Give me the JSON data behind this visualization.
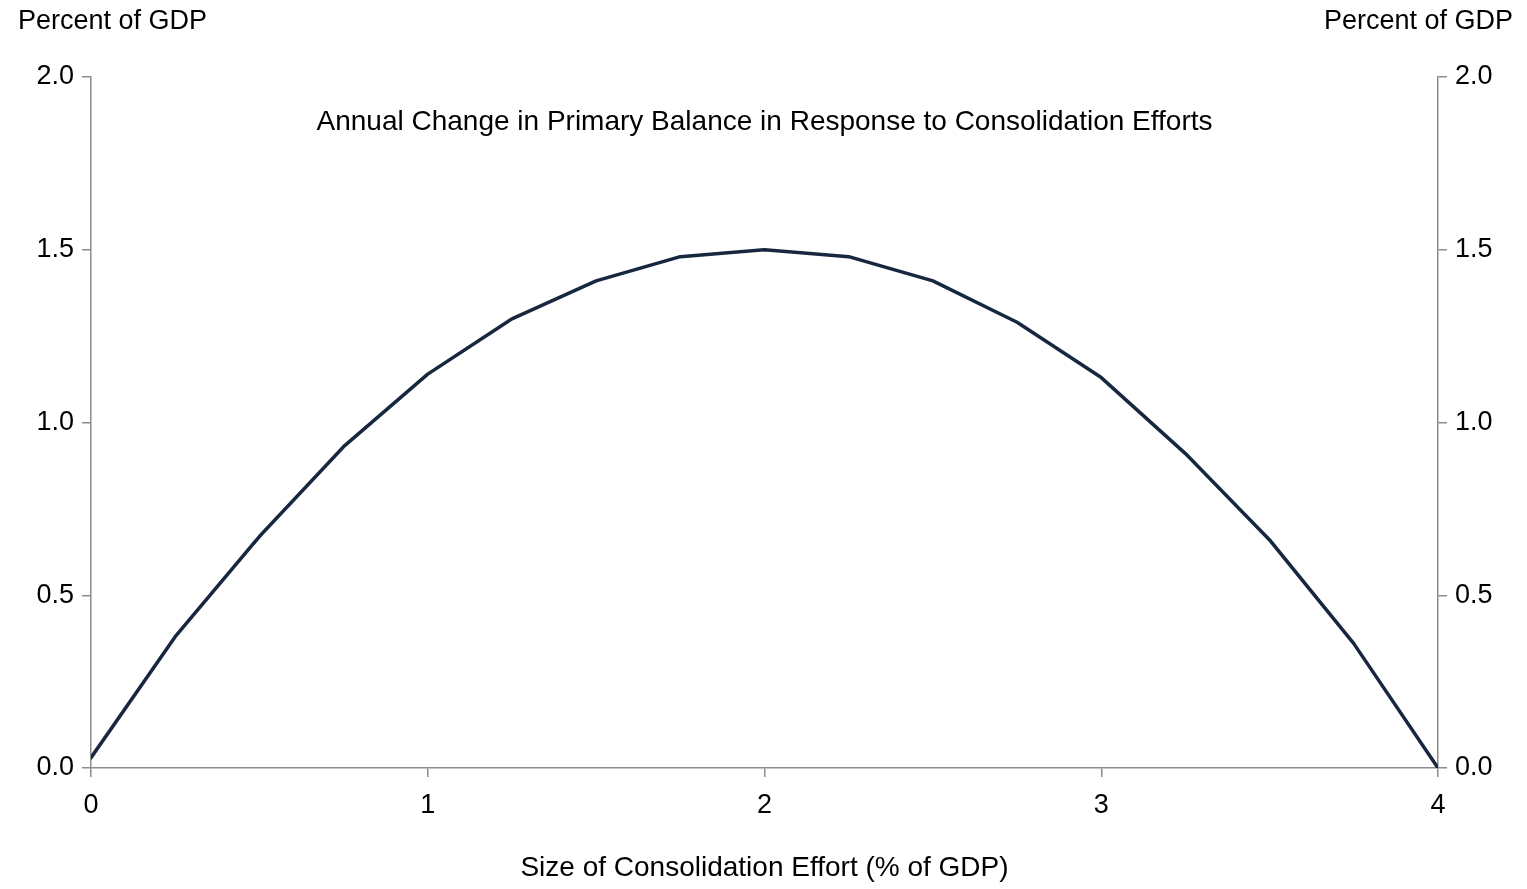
{
  "chart_data": {
    "type": "line",
    "title": "Annual Change in Primary Balance in Response to Consolidation Efforts",
    "xlabel": "Size of Consolidation Effort (% of GDP)",
    "ylabel": "Percent of GDP",
    "y2label": "Percent of GDP",
    "x": [
      0,
      0.25,
      0.5,
      0.75,
      1,
      1.25,
      1.5,
      1.75,
      2,
      2.25,
      2.5,
      2.75,
      3,
      3.25,
      3.5,
      3.75,
      4
    ],
    "series": [
      {
        "color": "#17273f",
        "values": [
          0.03,
          0.38,
          0.67,
          0.93,
          1.14,
          1.3,
          1.41,
          1.48,
          1.5,
          1.48,
          1.41,
          1.29,
          1.13,
          0.91,
          0.66,
          0.36,
          0
        ]
      }
    ],
    "xlim": [
      0,
      4
    ],
    "xticks": [
      0,
      1,
      2,
      3,
      4
    ],
    "ylim": [
      0,
      2
    ],
    "yticks": [
      {
        "value": 0,
        "label": "0.0"
      },
      {
        "value": 0.5,
        "label": "0.5"
      },
      {
        "value": 1,
        "label": "1.0"
      },
      {
        "value": 1.5,
        "label": "1.5"
      },
      {
        "value": 2,
        "label": "2.0"
      }
    ],
    "y2lim": [
      0,
      2
    ],
    "y2ticks": [
      {
        "value": 0,
        "label": "0.0"
      },
      {
        "value": 0.5,
        "label": "0.5"
      },
      {
        "value": 1,
        "label": "1.0"
      },
      {
        "value": 1.5,
        "label": "1.5"
      },
      {
        "value": 2,
        "label": "2.0"
      }
    ],
    "grid": false,
    "legend": false,
    "marker": "none",
    "line_style": "solid"
  }
}
